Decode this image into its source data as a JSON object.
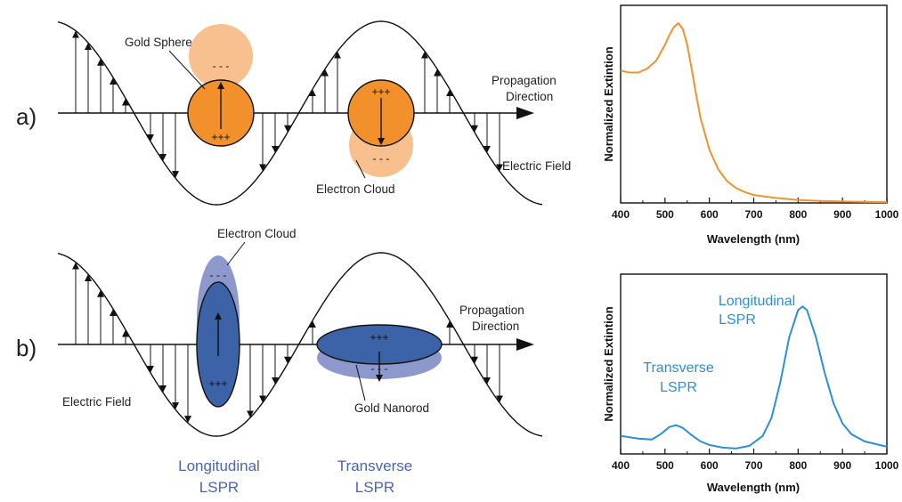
{
  "panel_a": {
    "label": "a)",
    "gold_sphere": "Gold Sphere",
    "propagation_line1": "Propagation",
    "propagation_line2": "Direction",
    "electric_field": "Electric Field",
    "electron_cloud": "Electron Cloud",
    "minus": "- - -",
    "plus": "+++"
  },
  "panel_b": {
    "label": "b)",
    "electron_cloud": "Electron Cloud",
    "propagation_line1": "Propagation",
    "propagation_line2": "Direction",
    "electric_field": "Electric Field",
    "gold_nanorod": "Gold Nanorod",
    "longitudinal_line1": "Longitudinal",
    "longitudinal_line2": "LSPR",
    "transverse_line1": "Transverse",
    "transverse_line2": "LSPR",
    "minus": "- - -",
    "plus": "+++"
  },
  "colors": {
    "gold_orange": "#f2902b",
    "gold_cloud": "#f8c08e",
    "rod_blue": "#3c63a8",
    "rod_cloud": "#8d98cc",
    "spectrum_orange": "#f0922e",
    "spectrum_blue": "#2e8fd6"
  },
  "chart_data": [
    {
      "type": "line",
      "xlabel": "Wavelength (nm)",
      "ylabel": "Normalized  Extintion",
      "xlim": [
        400,
        1000
      ],
      "xticks": [
        "400",
        "500",
        "600",
        "700",
        "800",
        "900",
        "1000"
      ],
      "ylim": [
        0,
        1
      ],
      "y_ticks_labeled": false,
      "series": [
        {
          "x": [
            400,
            420,
            440,
            460,
            480,
            500,
            510,
            520,
            530,
            540,
            550,
            560,
            570,
            580,
            600,
            620,
            640,
            660,
            680,
            700,
            750,
            800,
            850,
            900,
            950,
            1000
          ],
          "y": [
            0.67,
            0.66,
            0.66,
            0.68,
            0.72,
            0.8,
            0.85,
            0.89,
            0.91,
            0.88,
            0.8,
            0.68,
            0.55,
            0.43,
            0.27,
            0.17,
            0.11,
            0.075,
            0.055,
            0.04,
            0.025,
            0.015,
            0.01,
            0.007,
            0.005,
            0.004
          ]
        }
      ]
    },
    {
      "type": "line",
      "xlabel": "Wavelength (nm)",
      "ylabel": "Normalized  Extintion",
      "xlim": [
        400,
        1000
      ],
      "xticks": [
        "400",
        "500",
        "600",
        "700",
        "800",
        "900",
        "1000"
      ],
      "ylim": [
        0,
        1
      ],
      "y_ticks_labeled": false,
      "annotations": [
        {
          "line1": "Longitudinal",
          "line2": "LSPR"
        },
        {
          "line1": "Transverse",
          "line2": "LSPR"
        }
      ],
      "series": [
        {
          "x": [
            400,
            440,
            470,
            490,
            510,
            525,
            540,
            560,
            580,
            600,
            630,
            660,
            690,
            720,
            740,
            760,
            780,
            800,
            810,
            820,
            840,
            860,
            880,
            900,
            920,
            950,
            1000
          ],
          "y": [
            0.1,
            0.085,
            0.08,
            0.11,
            0.15,
            0.16,
            0.145,
            0.105,
            0.07,
            0.05,
            0.035,
            0.03,
            0.045,
            0.1,
            0.2,
            0.4,
            0.65,
            0.8,
            0.82,
            0.8,
            0.65,
            0.45,
            0.28,
            0.17,
            0.11,
            0.07,
            0.04
          ]
        }
      ]
    }
  ]
}
